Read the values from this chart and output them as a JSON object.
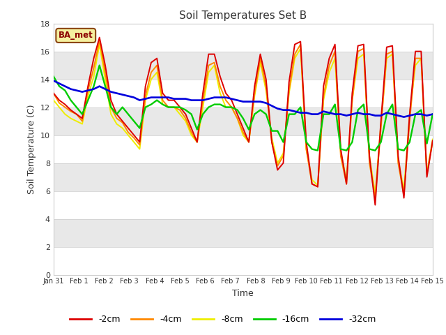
{
  "title": "Soil Temperatures Set B",
  "xlabel": "Time",
  "ylabel": "Soil Temperature (C)",
  "ylim": [
    0,
    18
  ],
  "yticks": [
    0,
    2,
    4,
    6,
    8,
    10,
    12,
    14,
    16,
    18
  ],
  "label_tag": "BA_met",
  "series_colors": {
    "-2cm": "#dd0000",
    "-4cm": "#ff8800",
    "-8cm": "#eeee00",
    "-16cm": "#00cc00",
    "-32cm": "#0000dd"
  },
  "xtick_labels": [
    "Jan 31",
    "Feb 1",
    "Feb 2",
    "Feb 3",
    "Feb 4",
    "Feb 5",
    "Feb 6",
    "Feb 7",
    "Feb 8",
    "Feb 9",
    "Feb 10",
    "Feb 11",
    "Feb 12",
    "Feb 13",
    "Feb 14",
    "Feb 15"
  ],
  "band_colors": [
    "#ffffff",
    "#e8e8e8"
  ],
  "series_linewidth": 1.4,
  "t_2cm": [
    13.0,
    12.5,
    12.2,
    11.8,
    11.5,
    11.2,
    13.5,
    15.5,
    17.0,
    15.0,
    12.5,
    11.5,
    11.0,
    10.5,
    10.0,
    9.5,
    13.5,
    15.2,
    15.5,
    13.0,
    12.5,
    12.5,
    12.0,
    11.5,
    10.5,
    9.5,
    13.0,
    15.8,
    15.8,
    14.2,
    13.0,
    12.5,
    11.5,
    10.5,
    9.5,
    13.5,
    15.8,
    14.0,
    9.5,
    7.5,
    8.0,
    13.8,
    16.5,
    16.7,
    9.5,
    6.5,
    6.3,
    13.5,
    15.5,
    16.5,
    9.0,
    6.5,
    13.0,
    16.4,
    16.5,
    8.5,
    5.0,
    11.0,
    16.3,
    16.4,
    8.5,
    5.5,
    11.5,
    16.0,
    16.0,
    7.0,
    9.6
  ],
  "t_4cm": [
    13.0,
    12.3,
    12.0,
    11.7,
    11.5,
    11.0,
    13.2,
    14.8,
    16.8,
    14.5,
    12.0,
    11.2,
    10.9,
    10.2,
    9.8,
    9.3,
    12.8,
    14.5,
    15.0,
    12.5,
    12.0,
    12.0,
    11.8,
    11.2,
    10.2,
    9.5,
    12.5,
    15.0,
    15.2,
    13.5,
    12.5,
    12.0,
    11.2,
    10.2,
    9.5,
    13.0,
    15.5,
    13.5,
    9.5,
    7.8,
    8.5,
    13.2,
    15.8,
    16.5,
    9.0,
    6.5,
    6.3,
    12.8,
    15.0,
    16.0,
    8.5,
    6.5,
    12.5,
    16.0,
    16.2,
    8.0,
    5.5,
    10.5,
    15.8,
    16.0,
    8.0,
    5.7,
    11.0,
    15.5,
    15.5,
    7.2,
    9.5
  ],
  "t_8cm": [
    12.5,
    12.0,
    11.5,
    11.2,
    11.0,
    10.8,
    12.8,
    14.2,
    16.5,
    14.0,
    11.5,
    10.8,
    10.5,
    10.0,
    9.5,
    9.0,
    12.5,
    14.0,
    14.5,
    12.2,
    12.0,
    12.0,
    11.5,
    11.0,
    10.0,
    9.5,
    12.0,
    14.5,
    15.0,
    13.0,
    12.0,
    12.0,
    11.2,
    10.0,
    9.5,
    12.8,
    15.2,
    13.2,
    9.8,
    8.0,
    8.7,
    13.0,
    15.5,
    16.2,
    9.0,
    6.8,
    6.4,
    12.5,
    14.5,
    15.5,
    8.8,
    6.8,
    12.5,
    15.5,
    15.8,
    8.5,
    5.8,
    10.8,
    15.5,
    15.8,
    8.2,
    6.1,
    11.5,
    15.0,
    15.5,
    7.3,
    9.7
  ],
  "t_16cm": [
    14.2,
    13.5,
    13.2,
    12.5,
    12.0,
    11.5,
    12.5,
    13.5,
    15.0,
    13.5,
    12.0,
    11.5,
    12.0,
    11.5,
    11.0,
    10.5,
    12.0,
    12.2,
    12.5,
    12.2,
    12.0,
    12.0,
    12.0,
    11.8,
    11.5,
    10.4,
    11.5,
    12.0,
    12.2,
    12.2,
    12.0,
    12.0,
    11.8,
    11.2,
    10.4,
    11.5,
    11.8,
    11.5,
    10.3,
    10.3,
    9.5,
    11.5,
    11.5,
    12.0,
    9.5,
    9.0,
    8.9,
    11.5,
    11.5,
    12.2,
    9.0,
    8.9,
    9.5,
    11.8,
    12.2,
    9.0,
    8.9,
    9.5,
    11.5,
    12.2,
    9.0,
    8.9,
    9.5,
    11.5,
    11.8,
    9.4,
    11.5
  ],
  "t_32cm": [
    13.9,
    13.7,
    13.5,
    13.3,
    13.2,
    13.1,
    13.2,
    13.3,
    13.5,
    13.3,
    13.1,
    13.0,
    12.9,
    12.8,
    12.7,
    12.5,
    12.6,
    12.7,
    12.7,
    12.7,
    12.7,
    12.6,
    12.6,
    12.6,
    12.5,
    12.5,
    12.5,
    12.6,
    12.7,
    12.7,
    12.7,
    12.6,
    12.5,
    12.4,
    12.4,
    12.4,
    12.4,
    12.3,
    12.1,
    11.9,
    11.8,
    11.8,
    11.7,
    11.6,
    11.6,
    11.5,
    11.5,
    11.7,
    11.6,
    11.5,
    11.5,
    11.4,
    11.5,
    11.6,
    11.5,
    11.5,
    11.4,
    11.4,
    11.6,
    11.5,
    11.4,
    11.3,
    11.4,
    11.5,
    11.5,
    11.4,
    11.5
  ]
}
